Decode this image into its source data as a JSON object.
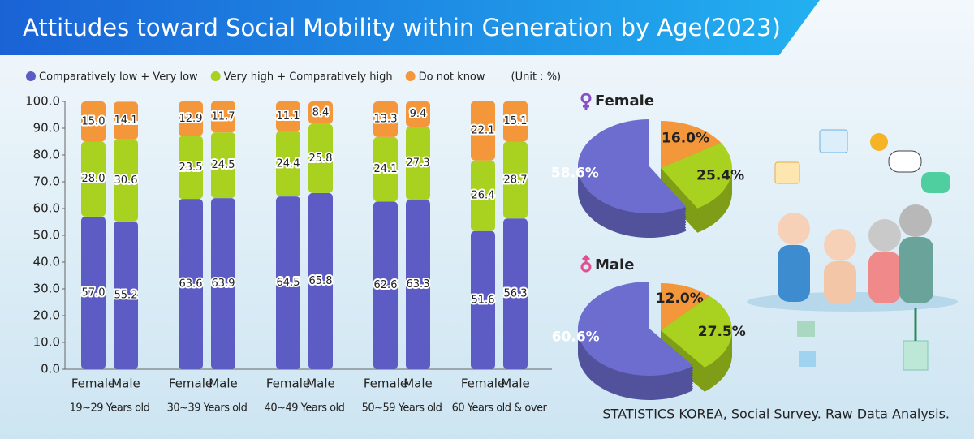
{
  "title": "Attitudes toward Social Mobility within Generation by Age(2023)",
  "source": "STATISTICS KOREA, Social Survey. Raw Data Analysis.",
  "chart_data": [
    {
      "type": "bar",
      "stacked": true,
      "unit": "(Unit : %)",
      "categories": [
        "Female",
        "Male",
        "Female",
        "Male",
        "Female",
        "Male",
        "Female",
        "Male",
        "Female",
        "Male"
      ],
      "group_labels": [
        "19~29 Years old",
        "30~39 Years old",
        "40~49 Years old",
        "50~59 Years old",
        "60 Years old & over"
      ],
      "ylim": [
        0,
        100
      ],
      "yticks": [
        {
          "value": 0,
          "label": "0.0"
        },
        {
          "value": 10,
          "label": "10.0"
        },
        {
          "value": 20,
          "label": "20.0"
        },
        {
          "value": 30,
          "label": "30.0"
        },
        {
          "value": 40,
          "label": "40.0"
        },
        {
          "value": 50,
          "label": "50.0"
        },
        {
          "value": 60,
          "label": "60.0"
        },
        {
          "value": 70,
          "label": "70.0"
        },
        {
          "value": 80,
          "label": "80.0"
        },
        {
          "value": 90,
          "label": "90.0"
        },
        {
          "value": 100,
          "label": "100.0"
        }
      ],
      "series": [
        {
          "name": "Comparatively low + Very low",
          "color": "#5d5cc4",
          "values": [
            57.0,
            55.2,
            63.6,
            63.9,
            64.5,
            65.8,
            62.6,
            63.3,
            51.6,
            56.3
          ],
          "value_labels": [
            "57.0",
            "55.2",
            "63.6",
            "63.9",
            "64.5",
            "65.8",
            "62.6",
            "63.3",
            "51.6",
            "56.3"
          ]
        },
        {
          "name": "Very high + Comparatively high",
          "color": "#a9d11f",
          "values": [
            28.0,
            30.6,
            23.5,
            24.5,
            24.4,
            25.8,
            24.1,
            27.3,
            26.4,
            28.7
          ],
          "value_labels": [
            "28.0",
            "30.6",
            "23.5",
            "24.5",
            "24.4",
            "25.8",
            "24.1",
            "27.3",
            "26.4",
            "28.7"
          ]
        },
        {
          "name": "Do not know",
          "color": "#f3973a",
          "values": [
            15.0,
            14.1,
            12.9,
            11.7,
            11.1,
            8.4,
            13.3,
            9.4,
            22.1,
            15.1
          ],
          "value_labels": [
            "15.0",
            "14.1",
            "12.9",
            "11.7",
            "11.1",
            "8.4",
            "13.3",
            "9.4",
            "22.1",
            "15.1"
          ]
        }
      ]
    },
    {
      "type": "pie",
      "title": "Female",
      "values": [
        58.6,
        25.4,
        16.0
      ],
      "value_labels": [
        "58.6%",
        "25.4%",
        "16.0%"
      ],
      "colors": [
        "#6d6dd0",
        "#a9d11f",
        "#f3973a"
      ]
    },
    {
      "type": "pie",
      "title": "Male",
      "values": [
        60.6,
        27.5,
        12.0
      ],
      "value_labels": [
        "60.6%",
        "27.5%",
        "12.0%"
      ],
      "colors": [
        "#6d6dd0",
        "#a9d11f",
        "#f3973a"
      ]
    }
  ]
}
